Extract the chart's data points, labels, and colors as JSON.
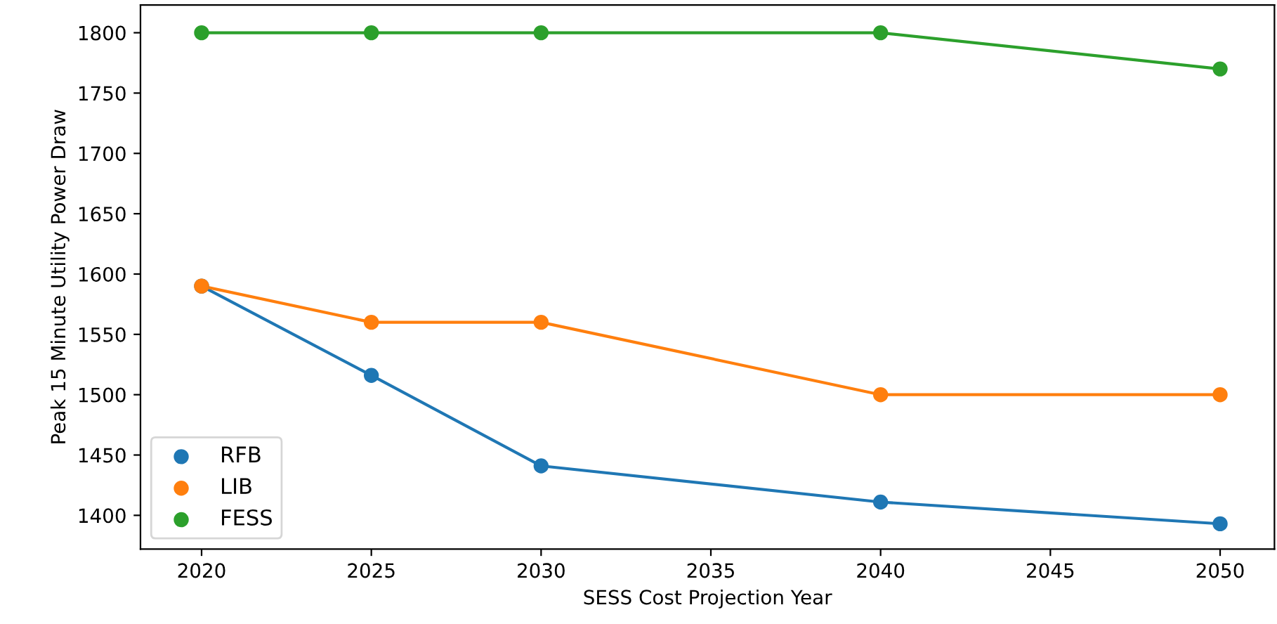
{
  "chart_data": {
    "type": "line",
    "xlabel": "SESS Cost Projection Year",
    "ylabel": "Peak 15 Minute Utility Power Draw",
    "x": [
      2020,
      2025,
      2030,
      2040,
      2050
    ],
    "series": [
      {
        "name": "RFB",
        "color": "#1f77b4",
        "values": [
          1590,
          1516,
          1441,
          1411,
          1393
        ]
      },
      {
        "name": "LIB",
        "color": "#ff7f0e",
        "values": [
          1590,
          1560,
          1560,
          1500,
          1500
        ]
      },
      {
        "name": "FESS",
        "color": "#2ca02c",
        "values": [
          1800,
          1800,
          1800,
          1800,
          1770
        ]
      }
    ],
    "xlim": [
      2018.2,
      2051.6
    ],
    "xticks": [
      2020,
      2025,
      2030,
      2035,
      2040,
      2045,
      2050
    ],
    "ylim": [
      1372,
      1823
    ],
    "yticks": [
      1400,
      1450,
      1500,
      1550,
      1600,
      1650,
      1700,
      1750,
      1800
    ],
    "marker": "circle",
    "line_style": "solid",
    "grid": false,
    "legend": "bottom left"
  }
}
